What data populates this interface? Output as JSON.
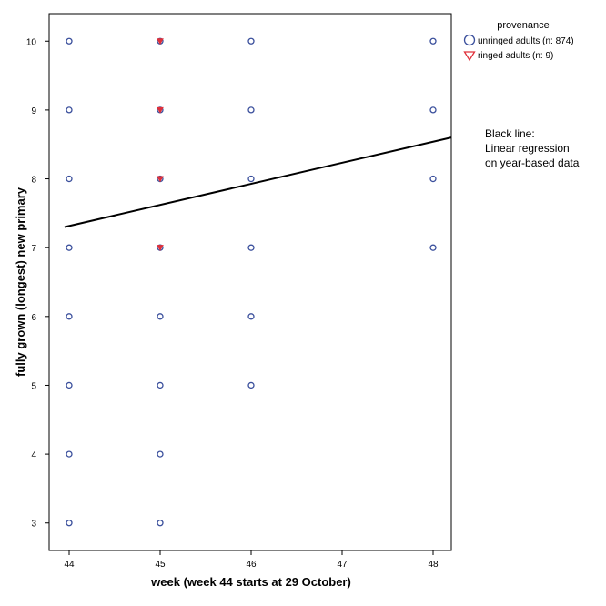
{
  "chart_data": {
    "type": "scatter",
    "xlabel": "week (week 44 starts at 29 October)",
    "ylabel": "fully grown (longest) new primary",
    "xlim": [
      43.78,
      48.2
    ],
    "ylim": [
      2.6,
      10.4
    ],
    "x_ticks": [
      "44",
      "45",
      "46",
      "47",
      "48"
    ],
    "y_ticks": [
      "3",
      "4",
      "5",
      "6",
      "7",
      "8",
      "9",
      "10"
    ],
    "grid": false,
    "legend": {
      "title": "provenance",
      "placement": "top-right outside plot"
    },
    "series": [
      {
        "name": "unringed adults (n: 874)",
        "marker": "circle",
        "color": "#3a4f9c",
        "points": [
          [
            44,
            3
          ],
          [
            44,
            4
          ],
          [
            44,
            5
          ],
          [
            44,
            6
          ],
          [
            44,
            7
          ],
          [
            44,
            8
          ],
          [
            44,
            9
          ],
          [
            44,
            10
          ],
          [
            45,
            3
          ],
          [
            45,
            4
          ],
          [
            45,
            5
          ],
          [
            45,
            6
          ],
          [
            45,
            7
          ],
          [
            45,
            8
          ],
          [
            45,
            9
          ],
          [
            45,
            10
          ],
          [
            46,
            5
          ],
          [
            46,
            6
          ],
          [
            46,
            7
          ],
          [
            46,
            8
          ],
          [
            46,
            9
          ],
          [
            46,
            10
          ],
          [
            48,
            7
          ],
          [
            48,
            8
          ],
          [
            48,
            9
          ],
          [
            48,
            10
          ]
        ]
      },
      {
        "name": "ringed adults (n: 9)",
        "marker": "triangle-down",
        "color": "#e0303a",
        "points": [
          [
            45,
            7
          ],
          [
            45,
            8
          ],
          [
            45,
            9
          ],
          [
            45,
            10
          ]
        ]
      }
    ],
    "regression_line": {
      "x": [
        43.95,
        48.2
      ],
      "y": [
        7.3,
        8.6
      ],
      "color": "#000000"
    },
    "annotation": [
      "Black line:",
      "Linear regression",
      "on year-based data"
    ]
  }
}
